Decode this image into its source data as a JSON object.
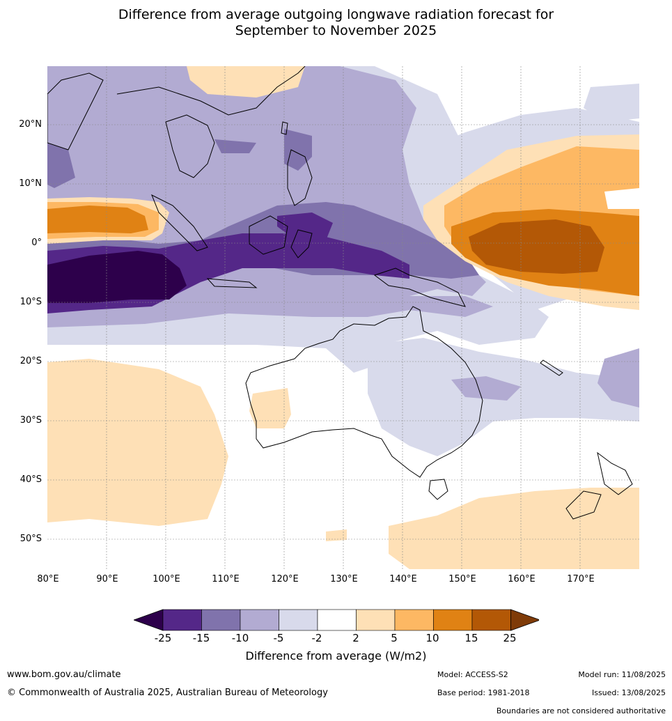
{
  "title_line1": "Difference from average outgoing longwave radiation forecast for",
  "title_line2": "September to November 2025",
  "lat_labels": [
    "20°N",
    "10°N",
    "0°",
    "10°S",
    "20°S",
    "30°S",
    "40°S",
    "50°S"
  ],
  "lon_labels": [
    "80°E",
    "90°E",
    "100°E",
    "110°E",
    "120°E",
    "130°E",
    "140°E",
    "150°E",
    "160°E",
    "170°E"
  ],
  "colorbar": {
    "ticks": [
      "-25",
      "-15",
      "-10",
      "-5",
      "-2",
      "2",
      "5",
      "10",
      "15",
      "25"
    ],
    "colors": [
      "#2d004b",
      "#542788",
      "#8073ac",
      "#b2abd2",
      "#d8daeb",
      "#ffffff",
      "#fee0b6",
      "#fdb863",
      "#e08214",
      "#b35806",
      "#7f3b08"
    ],
    "label": "Difference from average (W/m2)"
  },
  "footer": {
    "website": "www.bom.gov.au/climate",
    "copyright": "© Commonwealth of Australia 2025, Australian Bureau of Meteorology",
    "model": "Model: ACCESS-S2",
    "base_period": "Base period: 1981-2018",
    "model_run": "Model run: 11/08/2025",
    "issued": "Issued: 13/08/2025",
    "disclaimer": "Boundaries are not considered authoritative"
  }
}
